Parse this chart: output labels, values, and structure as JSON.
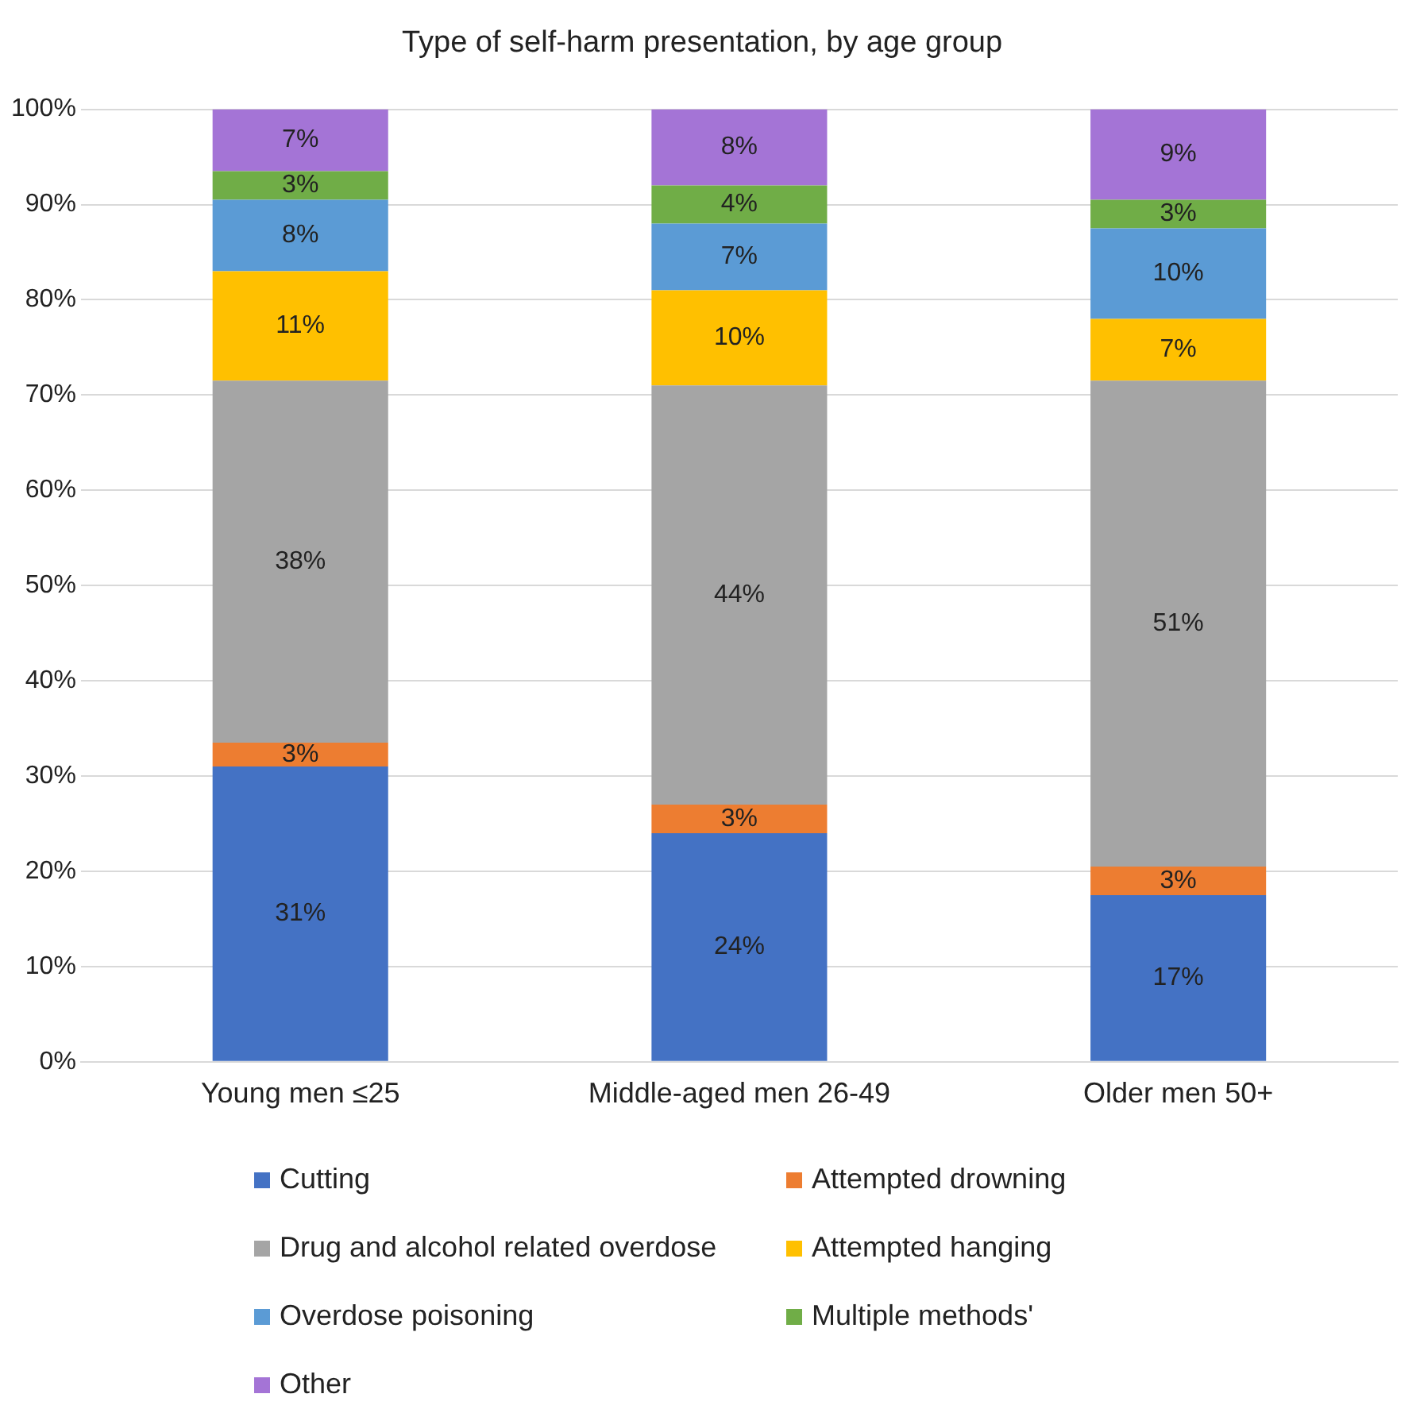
{
  "chart_data": {
    "type": "bar",
    "title": "Type of self-harm presentation, by age group",
    "categories": [
      "Young men ≤25",
      "Middle-aged men 26-49",
      "Older men 50+"
    ],
    "stacked": true,
    "series": [
      {
        "name": "Cutting",
        "color": "#4472c4",
        "values": [
          31,
          24,
          17.5
        ],
        "value_labels": [
          "31%",
          "24%",
          "17%"
        ]
      },
      {
        "name": "Attempted drowning",
        "color": "#ed7d31",
        "values": [
          2.5,
          3,
          3
        ],
        "value_labels": [
          "3%",
          "3%",
          "3%"
        ]
      },
      {
        "name": "Drug and alcohol related overdose",
        "color": "#a5a5a5",
        "values": [
          38,
          44,
          51
        ],
        "value_labels": [
          "38%",
          "44%",
          "51%"
        ]
      },
      {
        "name": "Attempted hanging",
        "color": "#ffc000",
        "values": [
          11.5,
          10,
          6.5
        ],
        "value_labels": [
          "11%",
          "10%",
          "7%"
        ]
      },
      {
        "name": "Overdose poisoning",
        "color": "#5b9bd5",
        "values": [
          7.5,
          7,
          9.5
        ],
        "value_labels": [
          "8%",
          "7%",
          "10%"
        ]
      },
      {
        "name": "Multiple methods'",
        "color": "#70ad47",
        "values": [
          3,
          4,
          3
        ],
        "value_labels": [
          "3%",
          "4%",
          "3%"
        ]
      },
      {
        "name": "Other",
        "color": "#a474d6",
        "values": [
          6.5,
          8,
          9.5
        ],
        "value_labels": [
          "7%",
          "8%",
          "9%"
        ]
      }
    ],
    "ylim": [
      0,
      100
    ],
    "yticks": [
      {
        "value": 0,
        "label": "0%"
      },
      {
        "value": 10,
        "label": "10%"
      },
      {
        "value": 20,
        "label": "20%"
      },
      {
        "value": 30,
        "label": "30%"
      },
      {
        "value": 40,
        "label": "40%"
      },
      {
        "value": 50,
        "label": "50%"
      },
      {
        "value": 60,
        "label": "60%"
      },
      {
        "value": 70,
        "label": "70%"
      },
      {
        "value": 80,
        "label": "80%"
      },
      {
        "value": 90,
        "label": "90%"
      },
      {
        "value": 100,
        "label": "100%"
      }
    ],
    "grid": "y",
    "legend": "bottom"
  }
}
